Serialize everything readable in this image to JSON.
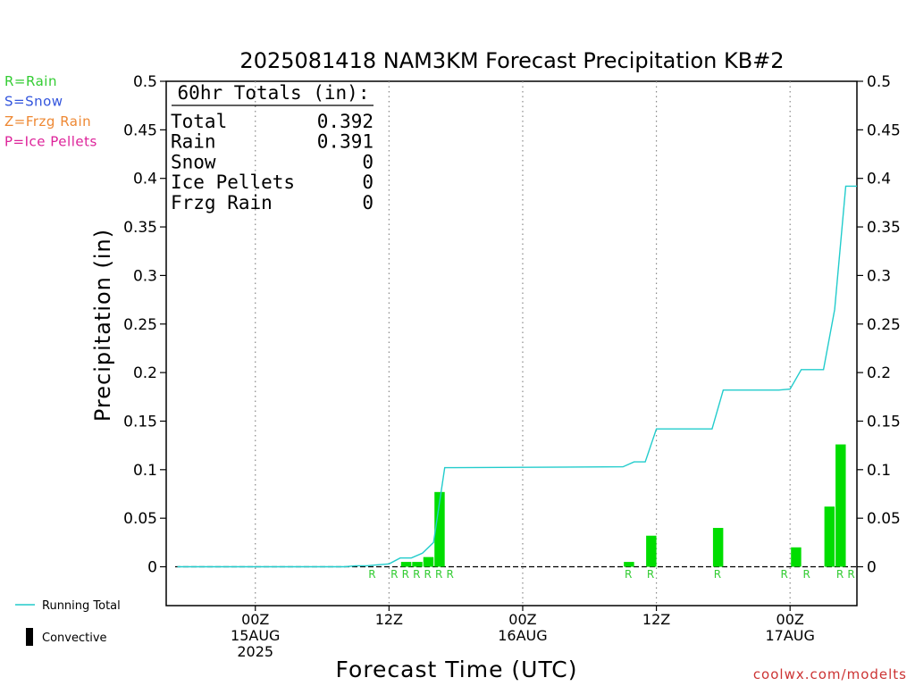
{
  "chart_data": {
    "type": "bar",
    "title": "2025081418 NAM3KM Forecast Precipitation KB#2",
    "ylabel": "Precipitation (in)",
    "xlabel": "Forecast Time (UTC)",
    "ylim": [
      -0.04,
      0.5
    ],
    "xlim_hours_from_init": [
      -2,
      60
    ],
    "yticks": [
      "0.5",
      "0.45",
      "0.4",
      "0.35",
      "0.3",
      "0.25",
      "0.2",
      "0.15",
      "0.1",
      "0.05",
      "0"
    ],
    "ytick_values": [
      0.5,
      0.45,
      0.4,
      0.35,
      0.3,
      0.25,
      0.2,
      0.15,
      0.1,
      0.05,
      0
    ],
    "xticks": [
      {
        "hour": 6,
        "lines": [
          "00Z",
          "15AUG",
          "2025"
        ]
      },
      {
        "hour": 18,
        "lines": [
          "12Z"
        ]
      },
      {
        "hour": 30,
        "lines": [
          "00Z",
          "16AUG"
        ]
      },
      {
        "hour": 42,
        "lines": [
          "12Z"
        ]
      },
      {
        "hour": 54,
        "lines": [
          "00Z",
          "17AUG"
        ]
      }
    ],
    "grid": "dotted vertical at tick positions",
    "precip_type_legend": [
      {
        "text": "R=Rain",
        "color": "#33cc33"
      },
      {
        "text": "S=Snow",
        "color": "#3355dd"
      },
      {
        "text": "Z=Frzg Rain",
        "color": "#ee8833"
      },
      {
        "text": "P=Ice Pellets",
        "color": "#dd2299"
      }
    ],
    "totals_box": {
      "title": "60hr Totals (in):",
      "rows": [
        {
          "label": "Total",
          "value": "0.392"
        },
        {
          "label": "Rain",
          "value": "0.391"
        },
        {
          "label": "Snow",
          "value": "0"
        },
        {
          "label": "Ice Pellets",
          "value": "0"
        },
        {
          "label": "Frzg Rain",
          "value": "0"
        }
      ]
    },
    "series": [
      {
        "name": "Running Total",
        "kind": "line",
        "color": "#22cccc",
        "x": [
          -1,
          9,
          14,
          15,
          16,
          17,
          18,
          19,
          20,
          21,
          22,
          23,
          39,
          40,
          41,
          42,
          43,
          47,
          48,
          53,
          54,
          55,
          57,
          58,
          59,
          60
        ],
        "y": [
          0,
          0,
          0,
          0.001,
          0.001,
          0.002,
          0.003,
          0.009,
          0.009,
          0.014,
          0.025,
          0.102,
          0.103,
          0.108,
          0.108,
          0.142,
          0.142,
          0.142,
          0.182,
          0.182,
          0.183,
          0.203,
          0.203,
          0.265,
          0.392,
          0.392
        ]
      },
      {
        "name": "Convective",
        "kind": "bar",
        "color": "#00dd00",
        "x": [
          20,
          21,
          22,
          23,
          40,
          42,
          48,
          55,
          58,
          59
        ],
        "values": [
          0.005,
          0.005,
          0.01,
          0.077,
          0.005,
          0.032,
          0.04,
          0.02,
          0.062,
          0.126
        ]
      }
    ],
    "precip_markers": {
      "color": "#33cc33",
      "x": [
        17,
        19,
        20,
        21,
        22,
        23,
        24,
        40,
        42,
        48,
        54,
        56,
        59,
        60
      ],
      "labels": [
        "R",
        "R",
        "R",
        "R",
        "R",
        "R",
        "R",
        "R",
        "R",
        "R",
        "R",
        "R",
        "R",
        "R"
      ]
    }
  },
  "legend_bottom": [
    {
      "name": "Running Total",
      "color": "#22cccc"
    },
    {
      "name": "Convective",
      "color": "#000000"
    }
  ],
  "watermark": "coolwx.com/modelts"
}
